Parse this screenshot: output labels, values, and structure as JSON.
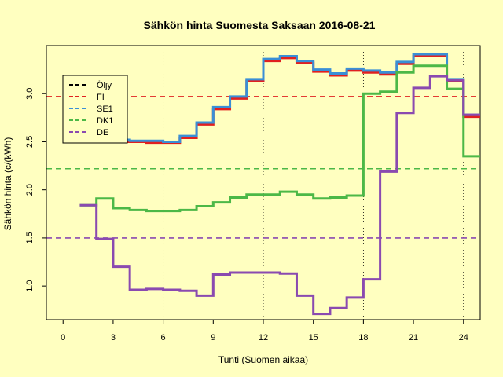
{
  "chart_data": {
    "type": "line",
    "title": "Sähkön hinta Suomesta Saksaan 2016-08-21",
    "xlabel": "Tunti (Suomen aikaa)",
    "ylabel": "Sähkön hinta (c/(kWh)",
    "xlim": [
      -1,
      25
    ],
    "ylim": [
      0.65,
      3.5
    ],
    "xticks": [
      0,
      3,
      6,
      9,
      12,
      15,
      18,
      21,
      24
    ],
    "yticks": [
      1.0,
      1.5,
      2.0,
      2.5,
      3.0
    ],
    "ytick_labels": [
      "1.0",
      "1.5",
      "2.0",
      "2.5",
      "3.0"
    ],
    "vlines": [
      6,
      12,
      18,
      24
    ],
    "legend_position": "top-left",
    "hours": [
      1,
      2,
      3,
      4,
      5,
      6,
      7,
      8,
      9,
      10,
      11,
      12,
      13,
      14,
      15,
      16,
      17,
      18,
      19,
      20,
      21,
      22,
      23,
      24
    ],
    "series": [
      {
        "name": "Öljy",
        "color": "#000000",
        "dashed_level": null,
        "values": []
      },
      {
        "name": "FI",
        "color": "#e02020",
        "dashed_level": 2.97,
        "values": [
          2.52,
          2.52,
          2.5,
          2.5,
          2.49,
          2.49,
          2.54,
          2.68,
          2.84,
          2.95,
          3.13,
          3.34,
          3.37,
          3.32,
          3.23,
          3.19,
          3.24,
          3.22,
          3.2,
          3.31,
          3.39,
          3.39,
          3.13,
          2.76
        ]
      },
      {
        "name": "SE1",
        "color": "#3a8fd6",
        "dashed_level": null,
        "values": [
          2.53,
          2.53,
          2.52,
          2.51,
          2.51,
          2.5,
          2.56,
          2.7,
          2.86,
          2.97,
          3.15,
          3.36,
          3.39,
          3.34,
          3.25,
          3.21,
          3.26,
          3.24,
          3.22,
          3.33,
          3.41,
          3.41,
          3.15,
          2.78
        ]
      },
      {
        "name": "DK1",
        "color": "#4cb847",
        "dashed_level": 2.22,
        "values": [
          1.84,
          1.91,
          1.81,
          1.79,
          1.78,
          1.78,
          1.79,
          1.83,
          1.87,
          1.92,
          1.95,
          1.95,
          1.98,
          1.95,
          1.91,
          1.92,
          1.94,
          3.0,
          3.02,
          3.22,
          3.29,
          3.29,
          3.05,
          2.35
        ]
      },
      {
        "name": "DE",
        "color": "#8a4ab0",
        "dashed_level": 1.5,
        "values": [
          1.84,
          1.49,
          1.2,
          0.96,
          0.97,
          0.96,
          0.95,
          0.9,
          1.12,
          1.14,
          1.14,
          1.14,
          1.13,
          0.9,
          0.71,
          0.77,
          0.88,
          1.07,
          2.19,
          2.8,
          3.06,
          3.18,
          3.14,
          2.78
        ]
      }
    ]
  }
}
